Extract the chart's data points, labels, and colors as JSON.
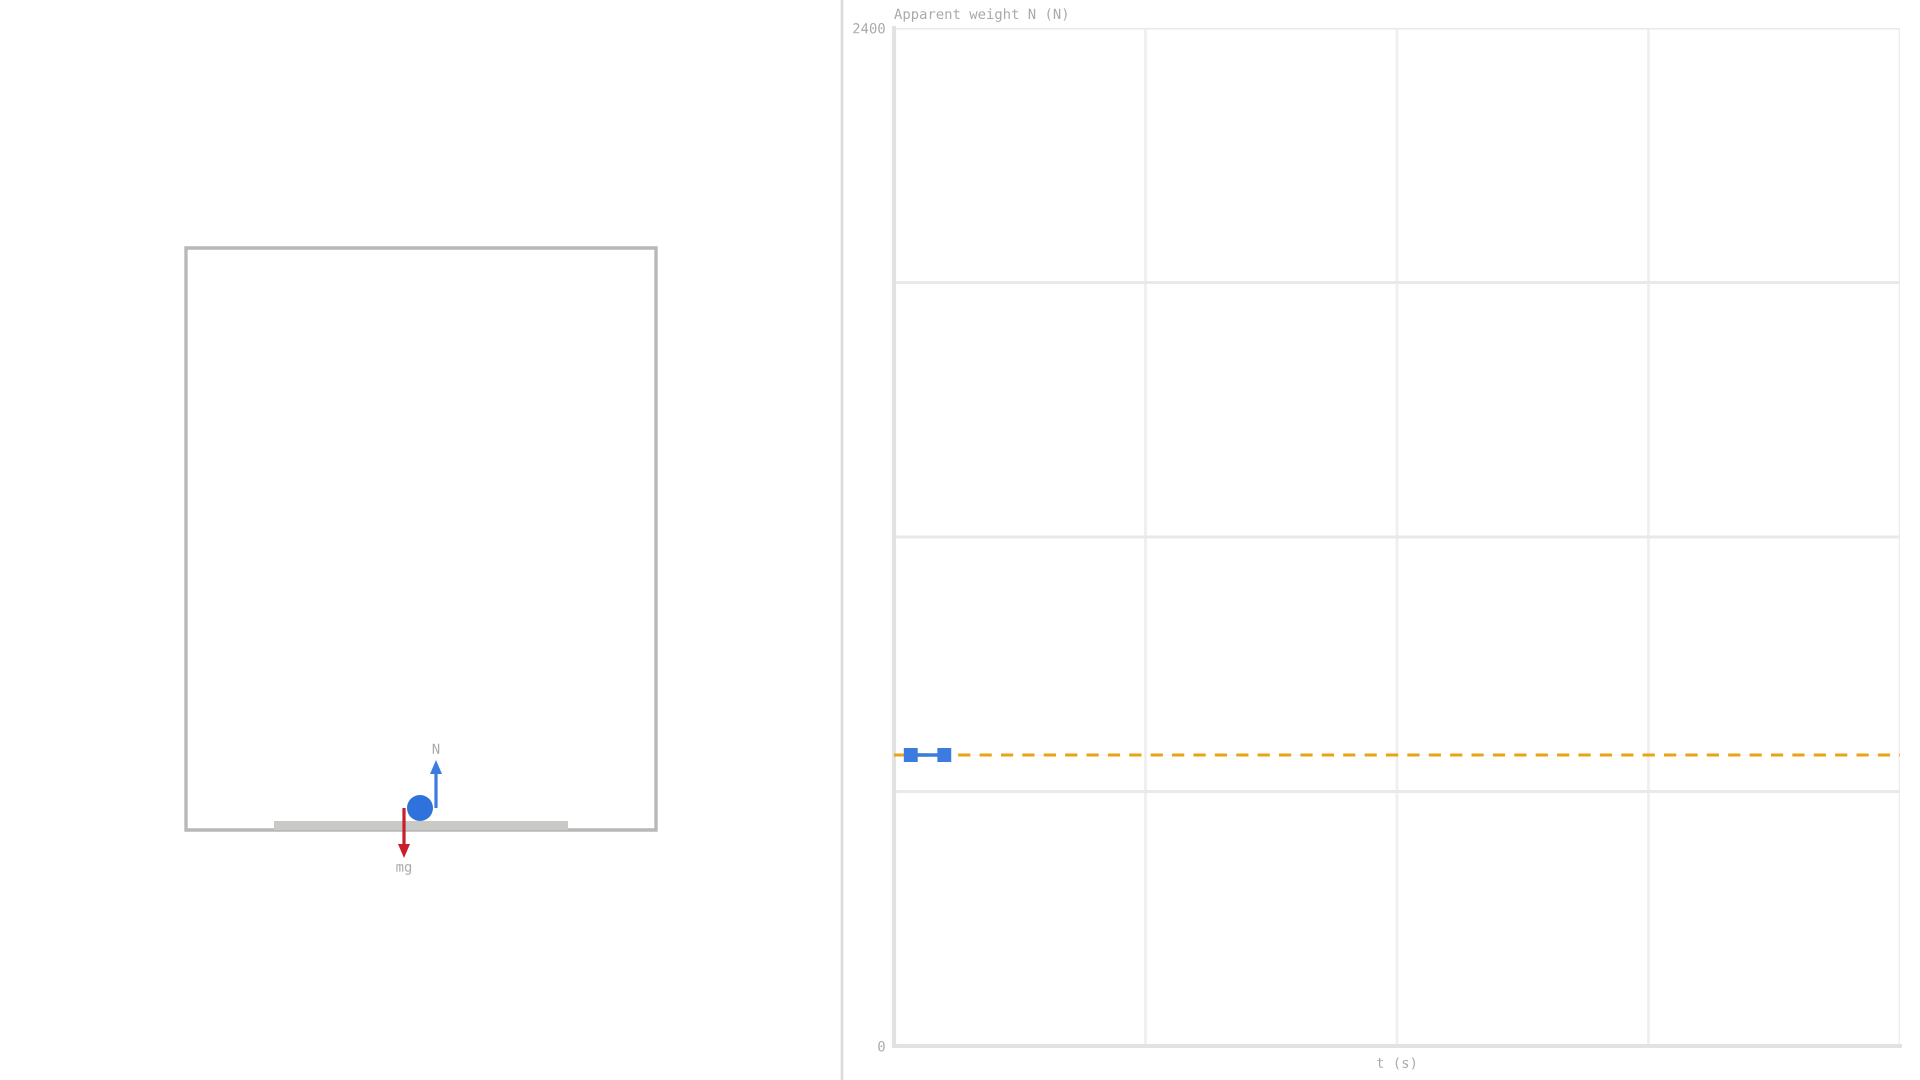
{
  "chart_data": {
    "type": "line",
    "ylabel": "Apparent weight N (N)",
    "xlabel": "t (s)",
    "categories": [
      null,
      null,
      null,
      null,
      null,
      null,
      null,
      null,
      null,
      null,
      null,
      null,
      null,
      null,
      null,
      null,
      null,
      null,
      null,
      null,
      null,
      null,
      null,
      null,
      null,
      null,
      null,
      null,
      null,
      null
    ],
    "series": [
      {
        "color": "#3c7be0",
        "values": [
          686,
          686,
          null,
          null,
          null,
          null,
          null,
          null,
          null,
          null,
          null,
          null,
          null,
          null,
          null,
          null,
          null,
          null,
          null,
          null,
          null,
          null,
          null,
          null,
          null,
          null,
          null,
          null,
          null,
          null
        ]
      }
    ],
    "ylim": [
      0,
      2400
    ],
    "yticks": [
      0,
      {
        "value": 600,
        "label": null
      },
      {
        "value": 1200,
        "label": null
      },
      {
        "value": 1800,
        "label": null
      },
      2400
    ],
    "ref_lines": [
      {
        "axis": "y",
        "value": 686,
        "color": "#e8a317",
        "line_style": "dashed"
      }
    ],
    "grid": true,
    "tick_labels": "y",
    "marker": "square",
    "line_style": "solid",
    "annotations": [
      "N",
      "mg"
    ]
  }
}
